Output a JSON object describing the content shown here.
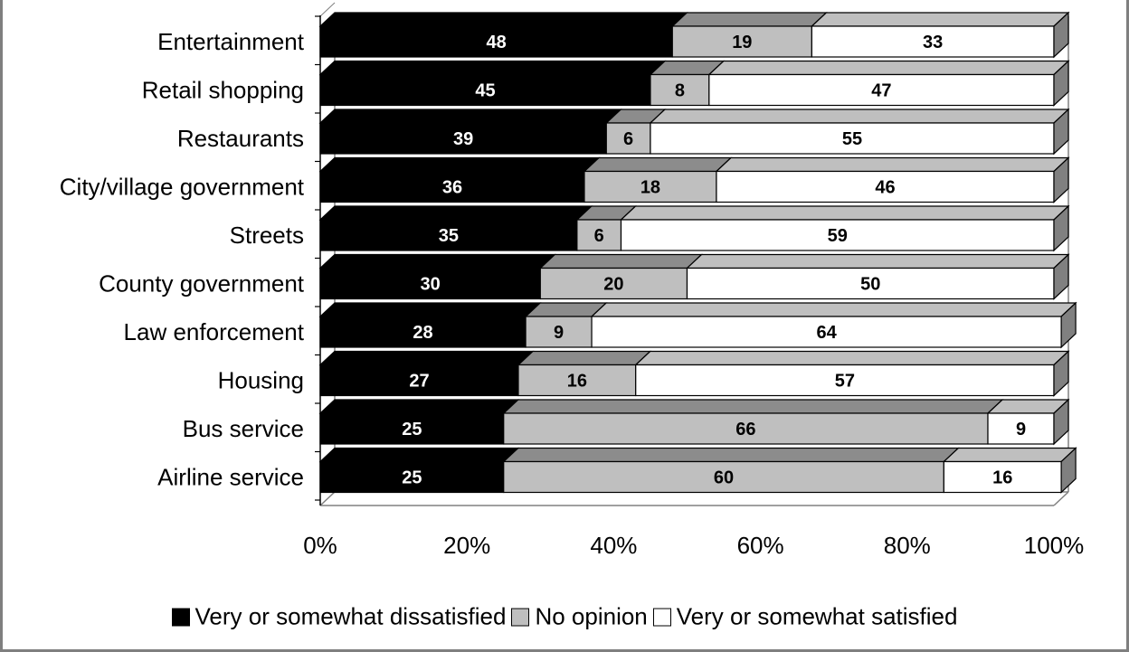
{
  "chart_data": {
    "type": "bar",
    "orientation": "horizontal",
    "stacked": "percent",
    "three_d": true,
    "categories": [
      "Entertainment",
      "Retail shopping",
      "Restaurants",
      "City/village government",
      "Streets",
      "County government",
      "Law enforcement",
      "Housing",
      "Bus service",
      "Airline service"
    ],
    "series": [
      {
        "name": "Very or somewhat dissatisfied",
        "values": [
          48,
          45,
          39,
          36,
          35,
          30,
          28,
          27,
          25,
          25
        ],
        "color": "#000000",
        "top_color": "#000000",
        "label_color": "#ffffff"
      },
      {
        "name": "No opinion",
        "values": [
          19,
          8,
          6,
          18,
          6,
          20,
          9,
          16,
          66,
          60
        ],
        "color": "#bfbfbf",
        "top_color": "#8c8c8c",
        "label_color": "#000000"
      },
      {
        "name": "Very or somewhat satisfied",
        "values": [
          33,
          47,
          55,
          46,
          59,
          50,
          64,
          57,
          9,
          16
        ],
        "color": "#ffffff",
        "top_color": "#bfbfbf",
        "label_color": "#000000"
      }
    ],
    "xlim": [
      0,
      100
    ],
    "x_ticks": [
      "0%",
      "20%",
      "40%",
      "60%",
      "80%",
      "100%"
    ],
    "gridlines": false,
    "legend_position": "bottom"
  }
}
